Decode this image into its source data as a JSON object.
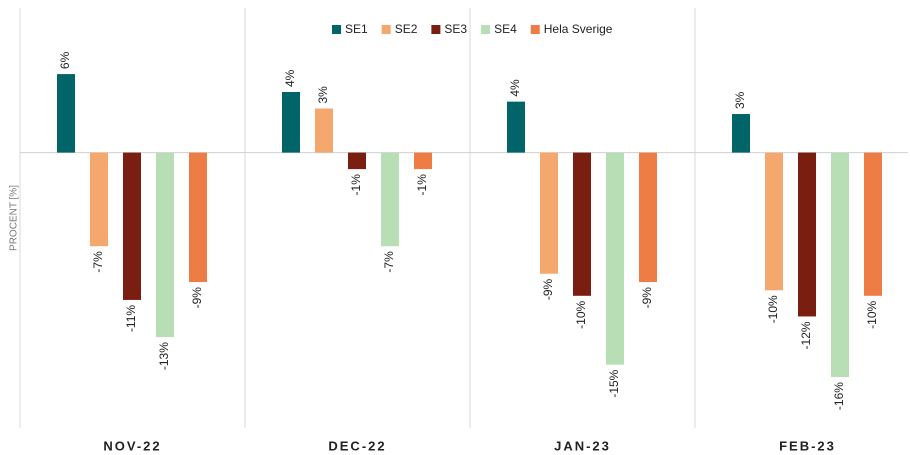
{
  "chart_data": {
    "type": "bar",
    "y_label": "PROCENT [%]",
    "categories": [
      "NOV-22",
      "DEC-22",
      "JAN-23",
      "FEB-23"
    ],
    "series": [
      {
        "name": "SE1",
        "color": "#006468",
        "values": [
          5.7,
          4.4,
          3.7,
          2.8
        ],
        "value_labels": [
          "6%",
          "4%",
          "4%",
          "3%"
        ]
      },
      {
        "name": "SE2",
        "color": "#f5a86e",
        "values": [
          -6.8,
          3.2,
          -8.8,
          -10.0
        ],
        "value_labels": [
          "-7%",
          "3%",
          "-9%",
          "-10%"
        ]
      },
      {
        "name": "SE3",
        "color": "#7b1e12",
        "values": [
          -10.7,
          -1.2,
          -10.4,
          -11.9
        ],
        "value_labels": [
          "-11%",
          "-1%",
          "-10%",
          "-12%"
        ]
      },
      {
        "name": "SE4",
        "color": "#b8deb6",
        "values": [
          -13.4,
          -6.8,
          -15.4,
          -16.3
        ],
        "value_labels": [
          "-13%",
          "-7%",
          "-15%",
          "-16%"
        ]
      },
      {
        "name": "Hela Sverige",
        "color": "#ee7d45",
        "values": [
          -9.4,
          -1.2,
          -9.4,
          -10.4
        ],
        "value_labels": [
          "-9%",
          "-1%",
          "-9%",
          "-10%"
        ]
      }
    ],
    "ylim": [
      -20,
      10.5
    ]
  }
}
